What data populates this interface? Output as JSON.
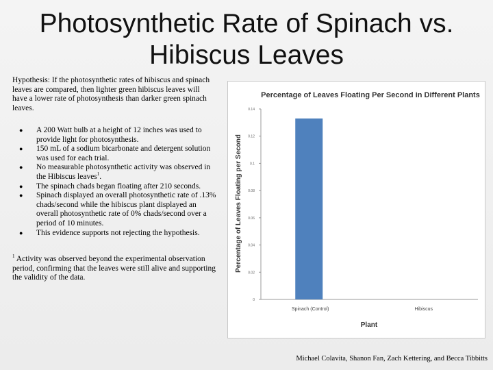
{
  "slide": {
    "title": "Photosynthetic Rate of Spinach vs. Hibiscus Leaves",
    "hypothesis": "Hypothesis: If the photosynthetic rates of hibiscus and spinach leaves are compared, then lighter green hibiscus leaves will have a lower rate of photosynthesis than darker green spinach leaves.",
    "bullets": [
      "A 200 Watt bulb at a height of 12 inches was used to provide light for photosynthesis.",
      "150 mL of a sodium bicarbonate and detergent solution was used for each trial.",
      "No measurable photosynthetic activity was observed in the Hibiscus leaves",
      "The spinach chads began floating after 210 seconds.",
      "Spinach displayed an overall photosynthetic rate of .13% chads/second while the hibiscus plant displayed an overall photosynthetic rate of 0% chads/second over a period of 10 minutes.",
      "This evidence supports not rejecting the hypothesis."
    ],
    "bullet_3_sup": "1",
    "bullet_3_after": ".",
    "footnote_marker": "1",
    "footnote": " Activity was observed beyond the experimental observation period, confirming that the leaves were still alive and supporting the validity of the data.",
    "credits": "Michael Colavita, Shanon Fan, Zach Kettering, and Becca Tibbitts"
  },
  "chart_data": {
    "type": "bar",
    "title": "Percentage of Leaves Floating Per Second in Different Plants",
    "xlabel": "Plant",
    "ylabel": "Percentage of Leaves Floating per Second",
    "categories": [
      "Spinach (Control)",
      "Hibiscus"
    ],
    "values": [
      0.133,
      0
    ],
    "ylim": [
      0,
      0.14
    ],
    "yticks": [
      "0",
      "0.02",
      "0.04",
      "0.06",
      "0.08",
      "0.1",
      "0.12",
      "0.14"
    ],
    "bar_color": "#4f81bd",
    "grid": false,
    "legend": "none"
  }
}
